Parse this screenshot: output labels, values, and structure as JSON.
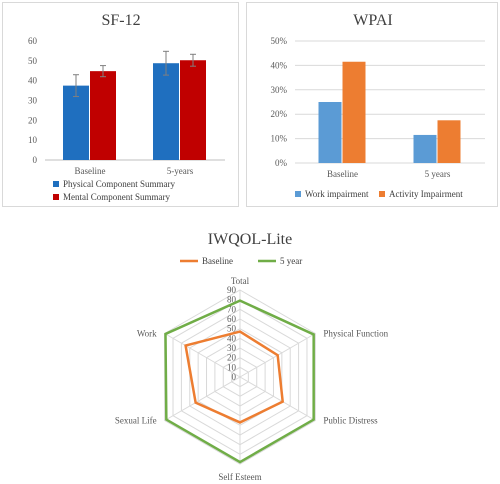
{
  "chart_data": [
    {
      "id": "sf12",
      "type": "bar",
      "title": "SF-12",
      "categories": [
        "Baseline",
        "5-years"
      ],
      "ylim": [
        0,
        60
      ],
      "yticks": [
        0,
        10,
        20,
        30,
        40,
        50,
        60
      ],
      "grid": false,
      "legend_position": "bottom",
      "error_bars": true,
      "series": [
        {
          "name": "Physical Component Summary",
          "color": "#1f6fbf",
          "values": [
            37.5,
            48.8
          ],
          "errors": [
            5.5,
            6.0
          ]
        },
        {
          "name": "Mental Component Summary",
          "color": "#c00000",
          "values": [
            44.8,
            50.3
          ],
          "errors": [
            2.8,
            3.0
          ]
        }
      ]
    },
    {
      "id": "wpai",
      "type": "bar",
      "title": "WPAI",
      "categories": [
        "Baseline",
        "5 years"
      ],
      "ylim": [
        0,
        50
      ],
      "yticks": [
        "0%",
        "10%",
        "20%",
        "30%",
        "40%",
        "50%"
      ],
      "grid": true,
      "legend_position": "bottom",
      "series": [
        {
          "name": "Work impairment",
          "color": "#5b9bd5",
          "values": [
            25,
            11.5
          ]
        },
        {
          "name": "Activity Impairment",
          "color": "#ed7d31",
          "values": [
            41.5,
            17.5
          ]
        }
      ]
    },
    {
      "id": "iwqol",
      "type": "radar",
      "title": "IWQOL-Lite",
      "categories": [
        "Total",
        "Physical Function",
        "Public Distress",
        "Self Esteem",
        "Sexual Life",
        "Work"
      ],
      "rlim": [
        0,
        90
      ],
      "rticks": [
        "0",
        "10",
        "20",
        "30",
        "40",
        "50",
        "60",
        "70",
        "80",
        "90"
      ],
      "grid": true,
      "legend_position": "top",
      "series": [
        {
          "name": "Baseline",
          "color": "#ed7d31",
          "values": [
            47,
            45,
            51,
            47,
            53,
            65
          ]
        },
        {
          "name": "5 year",
          "color": "#70ad47",
          "values": [
            79,
            88,
            88,
            88,
            88,
            89
          ]
        }
      ]
    }
  ]
}
